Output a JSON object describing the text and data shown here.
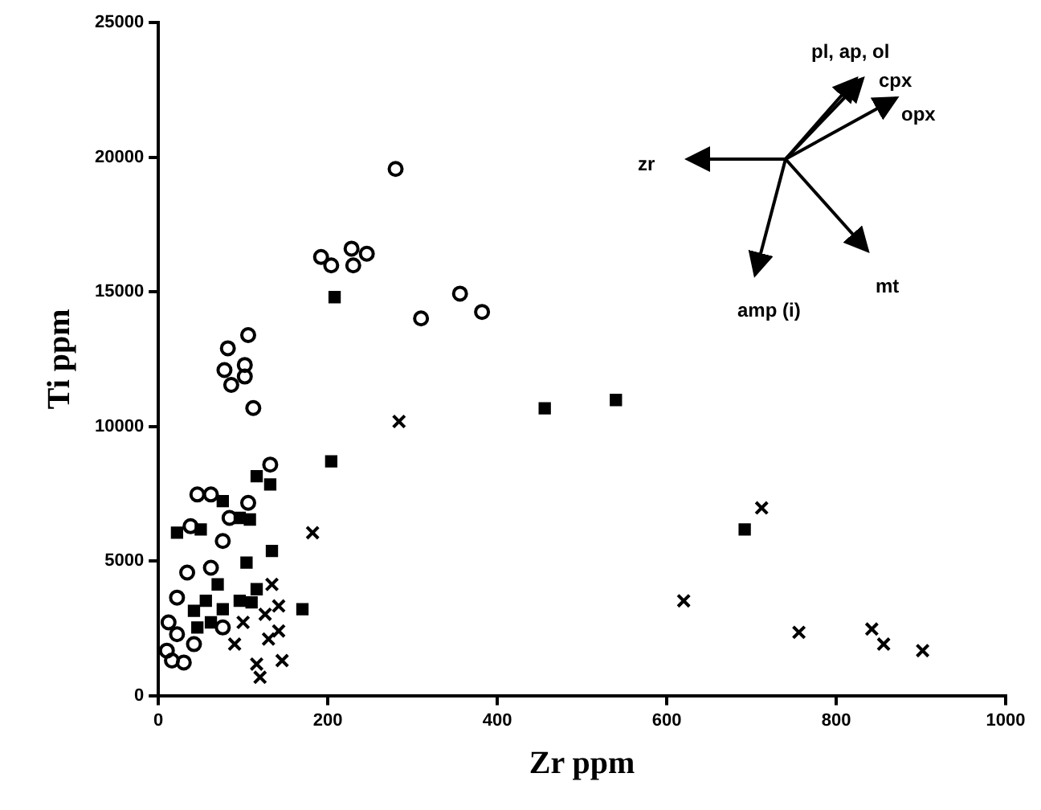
{
  "chart_data": {
    "type": "scatter",
    "xlabel": "Zr ppm",
    "ylabel": "Ti ppm",
    "xlim": [
      0,
      1000
    ],
    "ylim": [
      0,
      25000
    ],
    "xticks": [
      0,
      200,
      400,
      600,
      800,
      1000
    ],
    "yticks": [
      0,
      5000,
      10000,
      15000,
      20000,
      25000
    ],
    "grid": false,
    "legend": false,
    "series": [
      {
        "color": "#000000",
        "marker": "circle",
        "x": [
          280,
          192,
          204,
          228,
          230,
          246,
          310,
          356,
          382,
          106,
          82,
          78,
          102,
          86,
          102,
          112,
          132,
          46,
          62,
          106,
          84,
          38,
          76,
          62,
          34,
          22,
          12,
          22,
          42,
          76,
          16,
          30,
          10
        ],
        "values": [
          19560,
          16290,
          15980,
          16600,
          15980,
          16410,
          14010,
          14930,
          14250,
          13390,
          12900,
          12090,
          12280,
          11540,
          11850,
          10680,
          8580,
          7470,
          7470,
          7160,
          6600,
          6290,
          5740,
          4750,
          4570,
          3640,
          2720,
          2280,
          1910,
          2530,
          1300,
          1230,
          1670
        ]
      },
      {
        "color": "#000000",
        "marker": "square",
        "x": [
          208,
          204,
          456,
          540,
          692,
          116,
          132,
          76,
          96,
          108,
          22,
          50,
          134,
          104,
          70,
          116,
          170,
          42,
          56,
          76,
          96,
          62,
          46,
          110
        ],
        "values": [
          14800,
          8700,
          10670,
          10980,
          6170,
          8150,
          7840,
          7220,
          6600,
          6540,
          6050,
          6170,
          5370,
          4940,
          4130,
          3950,
          3210,
          3150,
          3520,
          3210,
          3520,
          2720,
          2530,
          3460
        ]
      },
      {
        "color": "#000000",
        "marker": "cross",
        "x": [
          284,
          712,
          620,
          756,
          842,
          856,
          902,
          182,
          134,
          142,
          100,
          130,
          146,
          116,
          120,
          90,
          142,
          126
        ],
        "values": [
          10180,
          6970,
          3520,
          2350,
          2470,
          1910,
          1670,
          6050,
          4130,
          3330,
          2720,
          2100,
          1300,
          1170,
          680,
          1910,
          2400,
          3020
        ]
      }
    ],
    "annotations": [
      "pl, ap, ol",
      "cpx",
      "opx",
      "zr",
      "mt",
      "amp (i)"
    ]
  }
}
